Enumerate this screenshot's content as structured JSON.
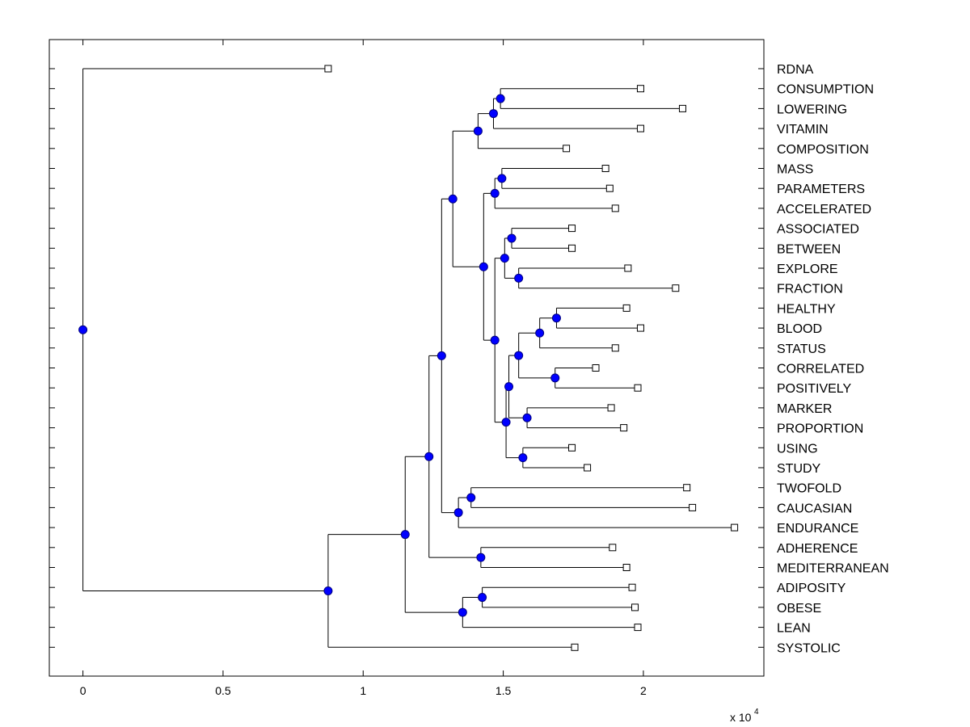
{
  "chart_data": {
    "type": "dendrogram",
    "orientation": "horizontal",
    "title": "",
    "xlabel": "",
    "ylabel": "",
    "x_multiplier_label": "x 10",
    "x_multiplier_exponent": "4",
    "xlim": [
      -0.12,
      2.43
    ],
    "xticks": [
      {
        "value": 0,
        "label": "0"
      },
      {
        "value": 0.5,
        "label": "0.5"
      },
      {
        "value": 1,
        "label": "1"
      },
      {
        "value": 1.5,
        "label": "1.5"
      },
      {
        "value": 2,
        "label": "2"
      }
    ],
    "colors": {
      "node_fill": "#0000ff",
      "node_stroke": "#000080",
      "line": "#000000",
      "leaf_fill": "#ffffff"
    },
    "leaves": [
      {
        "label": "RDNA",
        "x": 0.875
      },
      {
        "label": "CONSUMPTION",
        "x": 1.99
      },
      {
        "label": "LOWERING",
        "x": 2.14
      },
      {
        "label": "VITAMIN",
        "x": 1.99
      },
      {
        "label": "COMPOSITION",
        "x": 1.725
      },
      {
        "label": "MASS",
        "x": 1.865
      },
      {
        "label": "PARAMETERS",
        "x": 1.88
      },
      {
        "label": "ACCELERATED",
        "x": 1.9
      },
      {
        "label": "ASSOCIATED",
        "x": 1.745
      },
      {
        "label": "BETWEEN",
        "x": 1.745
      },
      {
        "label": "EXPLORE",
        "x": 1.945
      },
      {
        "label": "FRACTION",
        "x": 2.115
      },
      {
        "label": "HEALTHY",
        "x": 1.94
      },
      {
        "label": "BLOOD",
        "x": 1.99
      },
      {
        "label": "STATUS",
        "x": 1.9
      },
      {
        "label": "CORRELATED",
        "x": 1.83
      },
      {
        "label": "POSITIVELY",
        "x": 1.98
      },
      {
        "label": "MARKER",
        "x": 1.885
      },
      {
        "label": "PROPORTION",
        "x": 1.93
      },
      {
        "label": "USING",
        "x": 1.745
      },
      {
        "label": "STUDY",
        "x": 1.8
      },
      {
        "label": "TWOFOLD",
        "x": 2.155
      },
      {
        "label": "CAUCASIAN",
        "x": 2.175
      },
      {
        "label": "ENDURANCE",
        "x": 2.325
      },
      {
        "label": "ADHERENCE",
        "x": 1.89
      },
      {
        "label": "MEDITERRANEAN",
        "x": 1.94
      },
      {
        "label": "ADIPOSITY",
        "x": 1.96
      },
      {
        "label": "OBESE",
        "x": 1.97
      },
      {
        "label": "LEAN",
        "x": 1.98
      },
      {
        "label": "SYSTOLIC",
        "x": 1.755
      }
    ],
    "merges": [
      {
        "id": "n1",
        "x": 1.49,
        "children": [
          "CONSUMPTION",
          "LOWERING"
        ]
      },
      {
        "id": "n2",
        "x": 1.465,
        "children": [
          "n1",
          "VITAMIN"
        ]
      },
      {
        "id": "n3",
        "x": 1.41,
        "children": [
          "n2",
          "COMPOSITION"
        ]
      },
      {
        "id": "n4",
        "x": 1.495,
        "children": [
          "MASS",
          "PARAMETERS"
        ]
      },
      {
        "id": "n5",
        "x": 1.47,
        "children": [
          "n4",
          "ACCELERATED"
        ]
      },
      {
        "id": "n6",
        "x": 1.53,
        "children": [
          "ASSOCIATED",
          "BETWEEN"
        ]
      },
      {
        "id": "n7",
        "x": 1.555,
        "children": [
          "EXPLORE",
          "FRACTION"
        ]
      },
      {
        "id": "n8",
        "x": 1.505,
        "children": [
          "n6",
          "n7"
        ]
      },
      {
        "id": "n9",
        "x": 1.69,
        "children": [
          "HEALTHY",
          "BLOOD"
        ]
      },
      {
        "id": "n10",
        "x": 1.63,
        "children": [
          "n9",
          "STATUS"
        ]
      },
      {
        "id": "n11",
        "x": 1.685,
        "children": [
          "CORRELATED",
          "POSITIVELY"
        ]
      },
      {
        "id": "n12",
        "x": 1.555,
        "children": [
          "n10",
          "n11"
        ]
      },
      {
        "id": "n13",
        "x": 1.585,
        "children": [
          "MARKER",
          "PROPORTION"
        ]
      },
      {
        "id": "n14",
        "x": 1.52,
        "children": [
          "n12",
          "n13"
        ]
      },
      {
        "id": "n15",
        "x": 1.57,
        "children": [
          "USING",
          "STUDY"
        ]
      },
      {
        "id": "n16",
        "x": 1.51,
        "children": [
          "n14",
          "n15"
        ]
      },
      {
        "id": "n17",
        "x": 1.47,
        "children": [
          "n8",
          "n16"
        ]
      },
      {
        "id": "n18",
        "x": 1.43,
        "children": [
          "n5",
          "n17"
        ]
      },
      {
        "id": "n19",
        "x": 1.32,
        "children": [
          "n3",
          "n18"
        ]
      },
      {
        "id": "n20",
        "x": 1.385,
        "children": [
          "TWOFOLD",
          "CAUCASIAN"
        ]
      },
      {
        "id": "n21",
        "x": 1.34,
        "children": [
          "n20",
          "ENDURANCE"
        ]
      },
      {
        "id": "n22",
        "x": 1.28,
        "children": [
          "n19",
          "n21"
        ]
      },
      {
        "id": "n23",
        "x": 1.42,
        "children": [
          "ADHERENCE",
          "MEDITERRANEAN"
        ]
      },
      {
        "id": "n24",
        "x": 1.235,
        "children": [
          "n22",
          "n23"
        ]
      },
      {
        "id": "n25",
        "x": 1.425,
        "children": [
          "ADIPOSITY",
          "OBESE"
        ]
      },
      {
        "id": "n26",
        "x": 1.355,
        "children": [
          "n25",
          "LEAN"
        ]
      },
      {
        "id": "n27",
        "x": 1.15,
        "children": [
          "n24",
          "n26"
        ]
      },
      {
        "id": "n28",
        "x": 0.875,
        "children": [
          "n27",
          "SYSTOLIC"
        ]
      },
      {
        "id": "root",
        "x": 0,
        "children": [
          "RDNA",
          "n28"
        ]
      }
    ]
  }
}
